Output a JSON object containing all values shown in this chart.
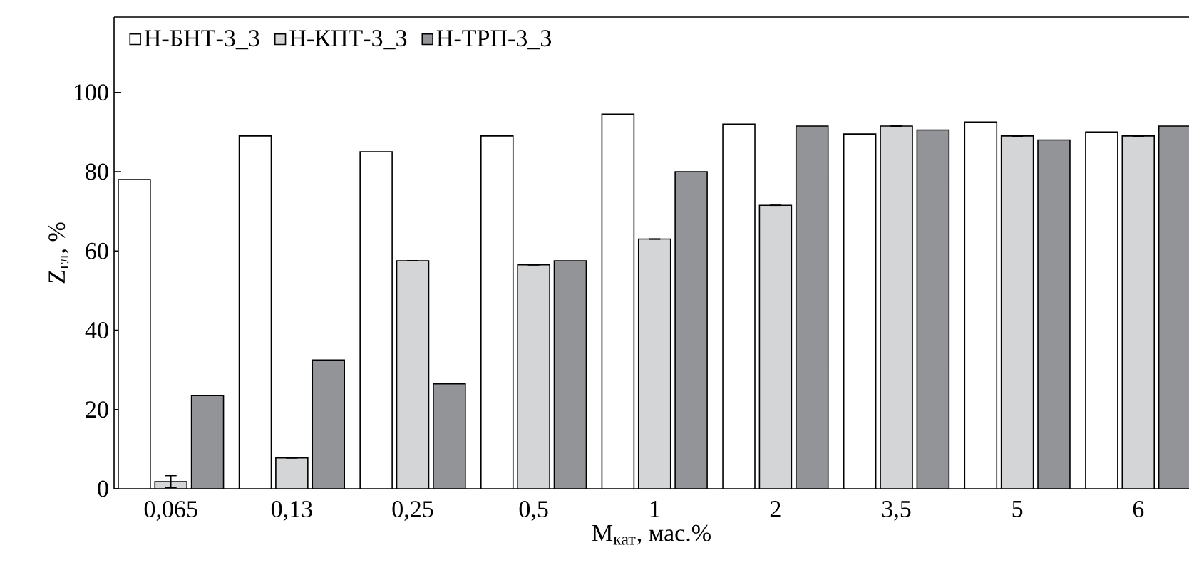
{
  "chart_data": {
    "type": "bar",
    "xlabel": "M$_{кат}$, мас.%",
    "ylabel": "Z$_{гл}$, %",
    "categories": [
      "0,065",
      "0,13",
      "0,25",
      "0,5",
      "1",
      "2",
      "3,5",
      "5",
      "6"
    ],
    "ylim": [
      0,
      119
    ],
    "yticks": [
      0,
      20,
      40,
      60,
      80,
      100
    ],
    "legend": "top left",
    "grid": false,
    "series": [
      {
        "name": "Н-БНТ-3_3",
        "color": "#ffffff",
        "values": [
          78,
          89,
          85,
          89,
          94.5,
          92,
          89.5,
          92.5,
          90
        ]
      },
      {
        "name": "Н-КПТ-3_3",
        "color": "#d4d5d7",
        "values": [
          1.8,
          7.8,
          57.5,
          56.5,
          63,
          71.5,
          91.5,
          89,
          89
        ],
        "errors": [
          1.5,
          null,
          null,
          null,
          null,
          null,
          null,
          null,
          null
        ]
      },
      {
        "name": "Н-ТРП-3_3",
        "color": "#939498",
        "values": [
          23.5,
          32.5,
          26.5,
          57.5,
          80,
          91.5,
          90.5,
          88,
          91.5
        ]
      }
    ]
  }
}
